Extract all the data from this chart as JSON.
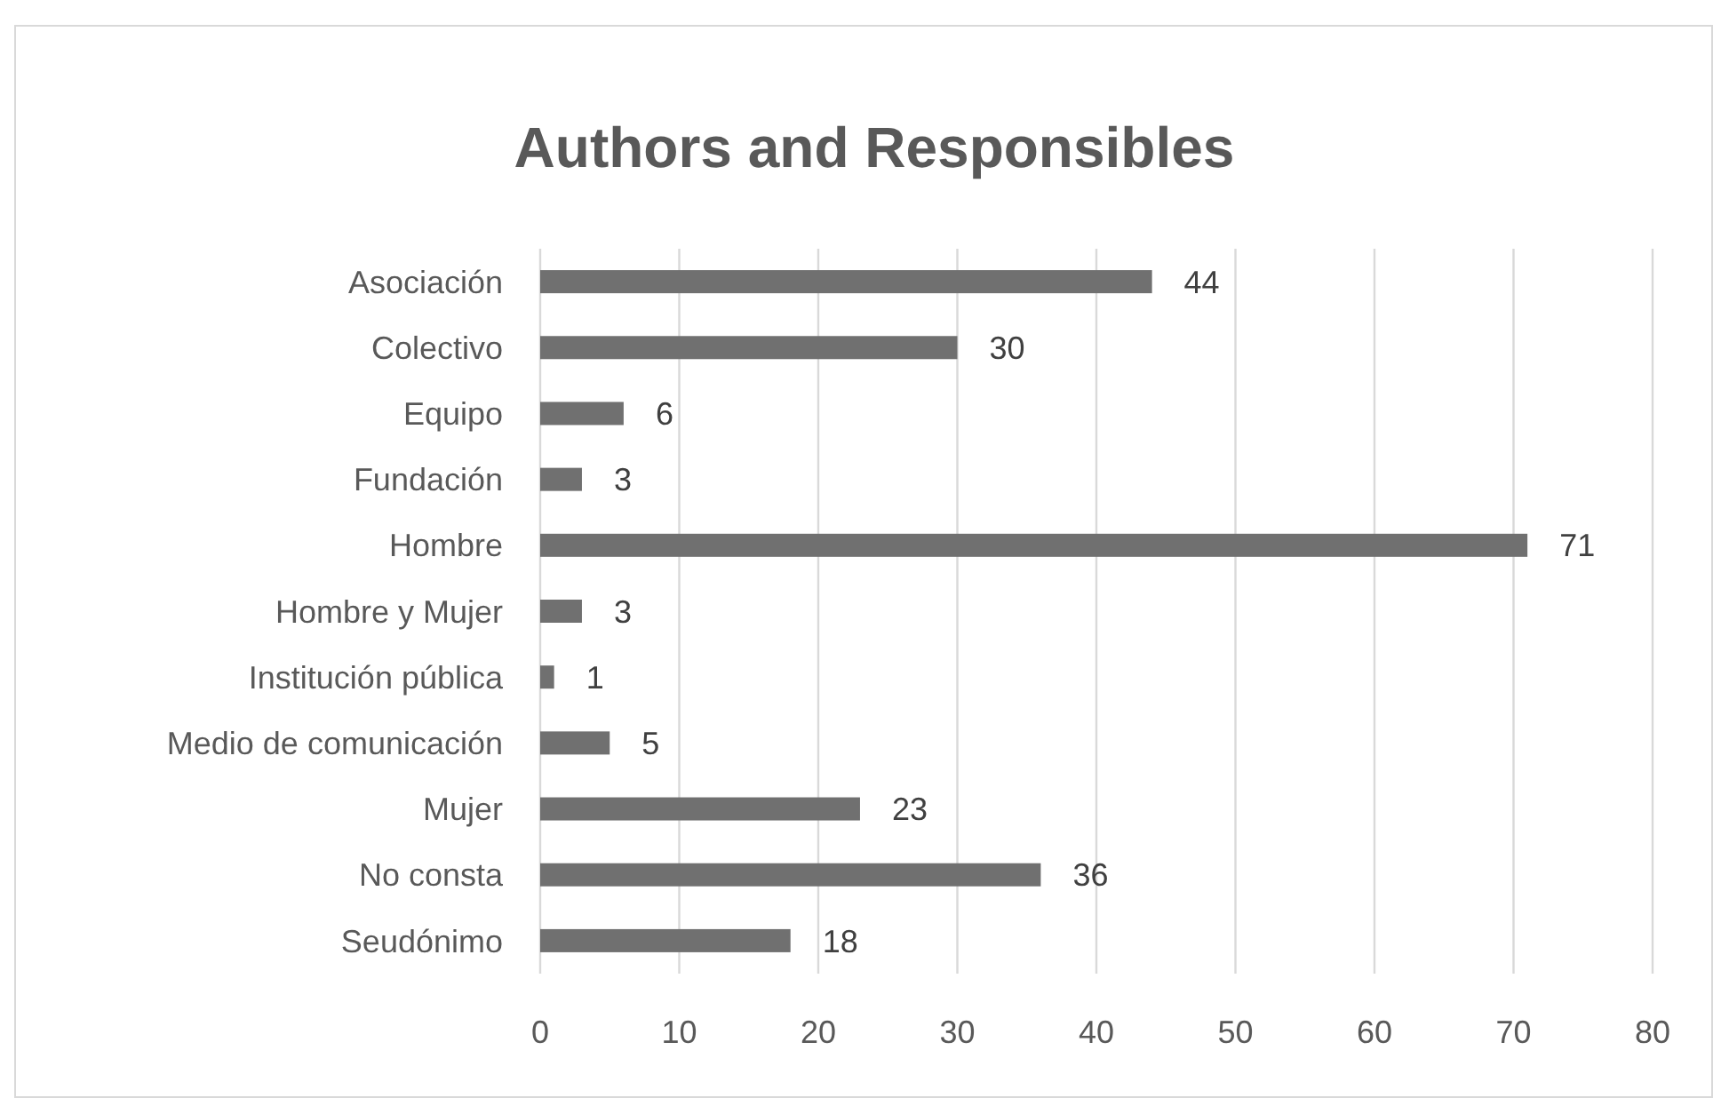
{
  "chart_data": {
    "type": "bar",
    "title": "Authors and Responsibles",
    "orientation": "horizontal",
    "categories": [
      "Asociación",
      "Colectivo",
      "Equipo",
      "Fundación",
      "Hombre",
      "Hombre y Mujer",
      "Institución pública",
      "Medio de comunicación",
      "Mujer",
      "No consta",
      "Seudónimo"
    ],
    "values": [
      44,
      30,
      6,
      3,
      71,
      3,
      1,
      5,
      23,
      36,
      18
    ],
    "color": "#707070",
    "xlim": [
      0,
      80
    ],
    "xticks": [
      0,
      10,
      20,
      30,
      40,
      50,
      60,
      70,
      80
    ],
    "grid": "x",
    "data_labels": true
  }
}
